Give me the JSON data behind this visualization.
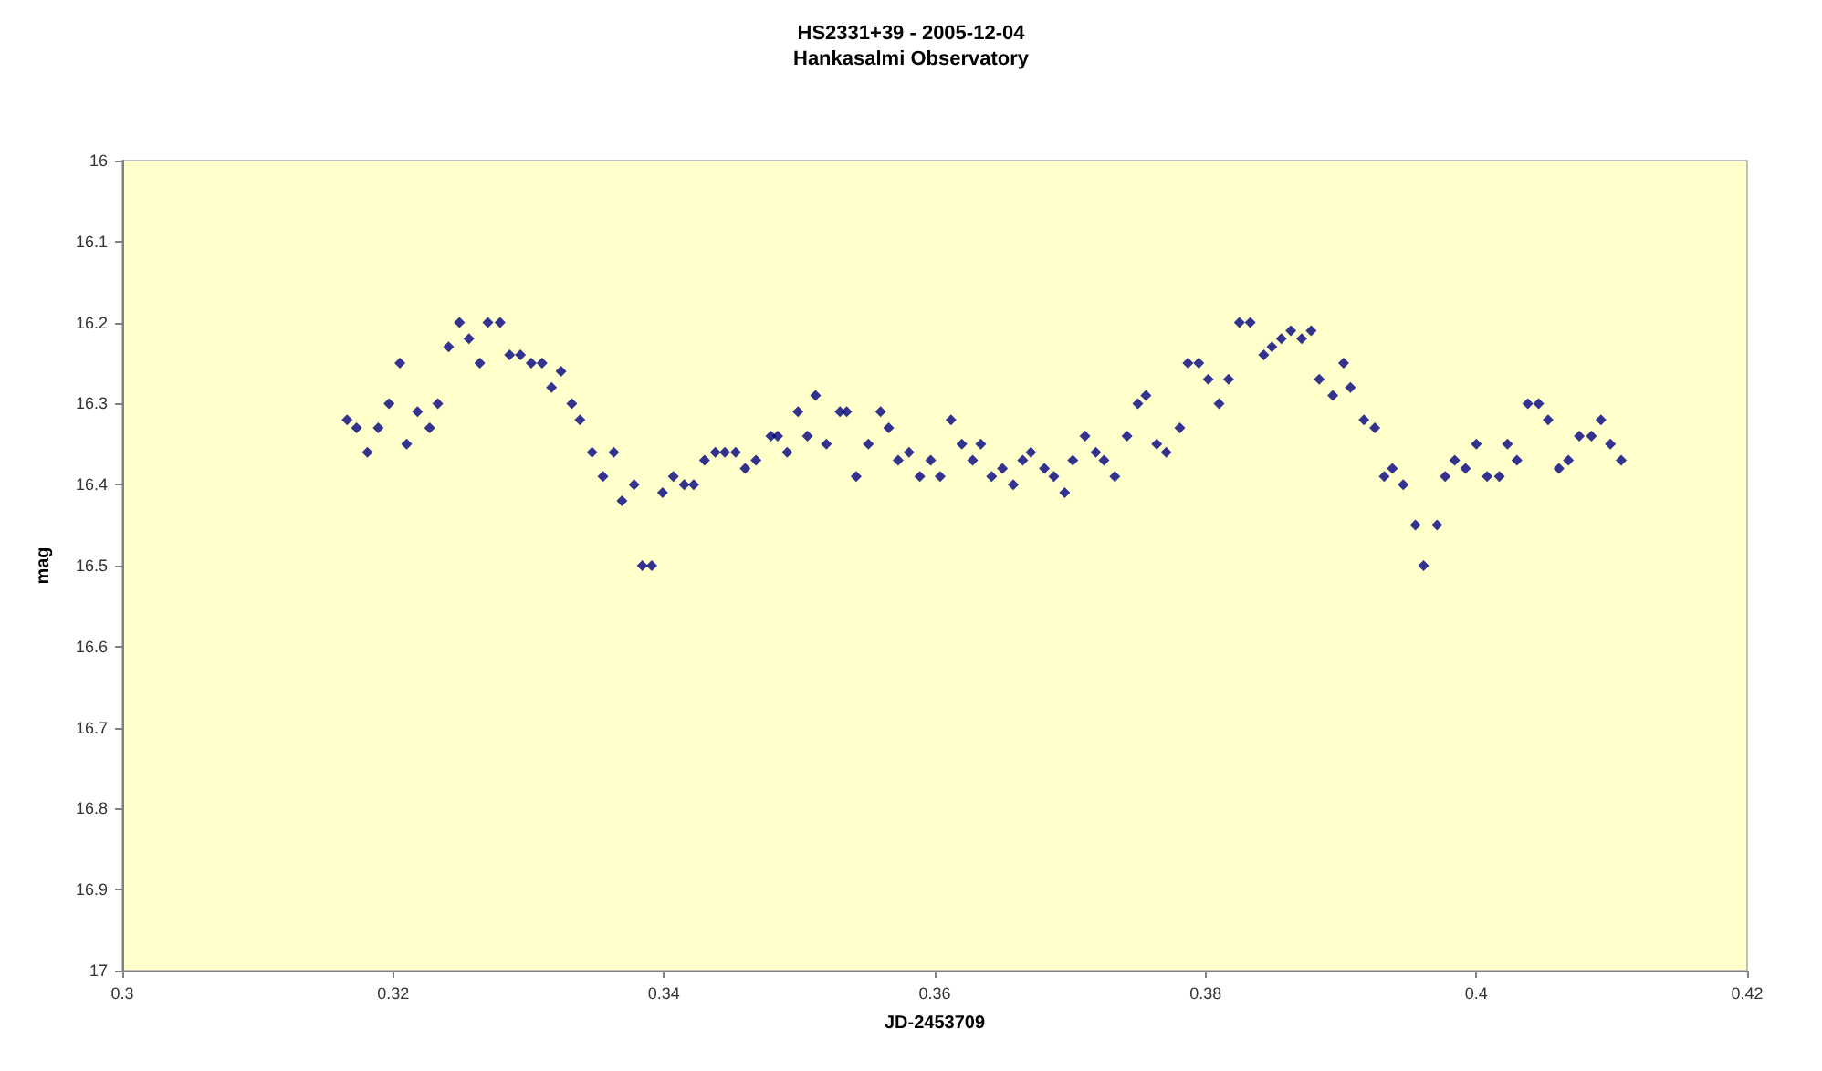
{
  "chart_data": {
    "type": "scatter",
    "title": "HS2331+39 - 2005-12-04",
    "subtitle": "Hankasalmi Observatory",
    "xlabel": "JD-2453709",
    "ylabel": "mag",
    "marker": "diamond",
    "xlim": [
      0.3,
      0.42
    ],
    "xticks": [
      0.3,
      0.32,
      0.34,
      0.36,
      0.38,
      0.4,
      0.42
    ],
    "ylim": [
      17,
      16
    ],
    "yticks": [
      16,
      16.1,
      16.2,
      16.3,
      16.4,
      16.5,
      16.6,
      16.7,
      16.8,
      16.9,
      17
    ],
    "series": [
      {
        "color": "#000080",
        "x": [
          0.3166,
          0.3173,
          0.3181,
          0.3189,
          0.3197,
          0.3205,
          0.321,
          0.3218,
          0.3227,
          0.3233,
          0.3241,
          0.3249,
          0.3256,
          0.3264,
          0.327,
          0.3279,
          0.3286,
          0.3294,
          0.3302,
          0.331,
          0.3317,
          0.3324,
          0.3332,
          0.3338,
          0.3347,
          0.3355,
          0.3363,
          0.3369,
          0.3378,
          0.3384,
          0.3391,
          0.3399,
          0.3407,
          0.3415,
          0.3422,
          0.343,
          0.3438,
          0.3445,
          0.3453,
          0.346,
          0.3468,
          0.3479,
          0.3484,
          0.3491,
          0.3499,
          0.3506,
          0.3512,
          0.352,
          0.353,
          0.3535,
          0.3542,
          0.3551,
          0.356,
          0.3566,
          0.3573,
          0.3581,
          0.3589,
          0.3597,
          0.3604,
          0.3612,
          0.362,
          0.3628,
          0.3634,
          0.3642,
          0.365,
          0.3658,
          0.3665,
          0.3671,
          0.3681,
          0.3688,
          0.3696,
          0.3702,
          0.3711,
          0.3719,
          0.3725,
          0.3733,
          0.3742,
          0.375,
          0.3756,
          0.3764,
          0.3771,
          0.3781,
          0.3787,
          0.3795,
          0.3802,
          0.381,
          0.3817,
          0.3825,
          0.3833,
          0.3843,
          0.3849,
          0.3856,
          0.3863,
          0.3871,
          0.3878,
          0.3884,
          0.3894,
          0.3902,
          0.3907,
          0.3917,
          0.3925,
          0.3932,
          0.3938,
          0.3946,
          0.3955,
          0.3961,
          0.3971,
          0.3977,
          0.3984,
          0.3992,
          0.4,
          0.4008,
          0.4017,
          0.4023,
          0.403,
          0.4038,
          0.4046,
          0.4053,
          0.4061,
          0.4068,
          0.4076,
          0.4085,
          0.4092,
          0.4099,
          0.4107
        ],
        "values": [
          16.32,
          16.33,
          16.36,
          16.33,
          16.3,
          16.25,
          16.35,
          16.31,
          16.33,
          16.3,
          16.23,
          16.2,
          16.22,
          16.25,
          16.2,
          16.2,
          16.24,
          16.24,
          16.25,
          16.25,
          16.28,
          16.26,
          16.3,
          16.32,
          16.36,
          16.39,
          16.36,
          16.42,
          16.4,
          16.5,
          16.5,
          16.41,
          16.39,
          16.4,
          16.4,
          16.37,
          16.36,
          16.36,
          16.36,
          16.38,
          16.37,
          16.34,
          16.34,
          16.36,
          16.31,
          16.34,
          16.29,
          16.35,
          16.31,
          16.31,
          16.39,
          16.35,
          16.31,
          16.33,
          16.37,
          16.36,
          16.39,
          16.37,
          16.39,
          16.32,
          16.35,
          16.37,
          16.35,
          16.39,
          16.38,
          16.4,
          16.37,
          16.36,
          16.38,
          16.39,
          16.41,
          16.37,
          16.34,
          16.36,
          16.37,
          16.39,
          16.34,
          16.3,
          16.29,
          16.35,
          16.36,
          16.33,
          16.25,
          16.25,
          16.27,
          16.3,
          16.27,
          16.2,
          16.2,
          16.24,
          16.23,
          16.22,
          16.21,
          16.22,
          16.21,
          16.27,
          16.29,
          16.25,
          16.28,
          16.32,
          16.33,
          16.39,
          16.38,
          16.4,
          16.45,
          16.5,
          16.45,
          16.39,
          16.37,
          16.38,
          16.35,
          16.39,
          16.39,
          16.35,
          16.37,
          16.3,
          16.3,
          16.32,
          16.38,
          16.37,
          16.34,
          16.34,
          16.32,
          16.35,
          16.37
        ]
      }
    ]
  }
}
